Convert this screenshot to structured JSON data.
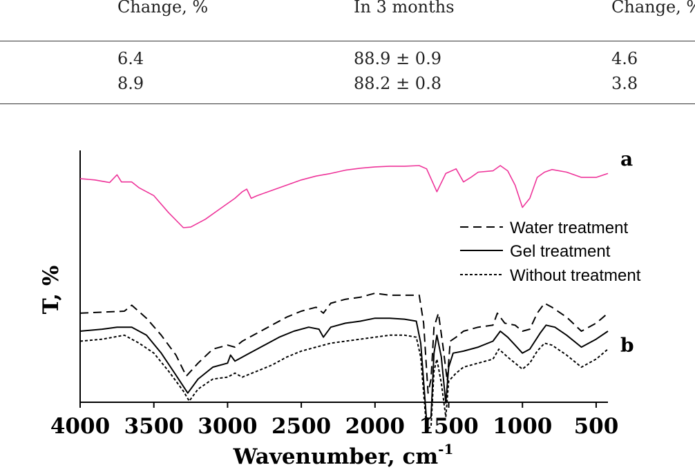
{
  "table": {
    "headers": [
      "Change, %",
      "In 3 months",
      "Change, %"
    ],
    "rows": [
      [
        "6.4",
        "88.9 ± 0.9",
        "4.6"
      ],
      [
        "8.9",
        "88.2 ± 0.8",
        "3.8"
      ]
    ]
  },
  "chart_data": {
    "type": "line",
    "title": "",
    "xlabel": "Wavenumber, cm",
    "xlabel_superscript": "-1",
    "ylabel": "T, %",
    "xlim": [
      4000,
      420
    ],
    "x_ticks": [
      4000,
      3500,
      3000,
      2500,
      2000,
      1500,
      1000,
      500
    ],
    "x_tick_labels": [
      "4000",
      "3500",
      "3000",
      "2500",
      "2000",
      "1500",
      "1000",
      "500"
    ],
    "grid": false,
    "legend_position": "right",
    "legend": [
      "Water treatment",
      "Gel treatment",
      "Without treatment"
    ],
    "panel_labels": [
      "a",
      "b"
    ],
    "series": [
      {
        "panel": "a",
        "color": "#ee3399",
        "style": "solid",
        "points": [
          [
            4000,
            0.2
          ],
          [
            3900,
            0.22
          ],
          [
            3800,
            0.26
          ],
          [
            3750,
            0.14
          ],
          [
            3720,
            0.25
          ],
          [
            3650,
            0.25
          ],
          [
            3600,
            0.34
          ],
          [
            3500,
            0.46
          ],
          [
            3400,
            0.72
          ],
          [
            3300,
            0.95
          ],
          [
            3250,
            0.94
          ],
          [
            3150,
            0.82
          ],
          [
            3050,
            0.66
          ],
          [
            2950,
            0.5
          ],
          [
            2900,
            0.4
          ],
          [
            2870,
            0.36
          ],
          [
            2840,
            0.5
          ],
          [
            2800,
            0.46
          ],
          [
            2700,
            0.38
          ],
          [
            2600,
            0.3
          ],
          [
            2500,
            0.22
          ],
          [
            2400,
            0.16
          ],
          [
            2300,
            0.12
          ],
          [
            2200,
            0.07
          ],
          [
            2100,
            0.04
          ],
          [
            2000,
            0.02
          ],
          [
            1900,
            0.01
          ],
          [
            1800,
            0.01
          ],
          [
            1700,
            0.0
          ],
          [
            1650,
            0.05
          ],
          [
            1580,
            0.4
          ],
          [
            1520,
            0.12
          ],
          [
            1450,
            0.05
          ],
          [
            1400,
            0.25
          ],
          [
            1350,
            0.18
          ],
          [
            1300,
            0.1
          ],
          [
            1200,
            0.08
          ],
          [
            1150,
            0.0
          ],
          [
            1100,
            0.08
          ],
          [
            1050,
            0.3
          ],
          [
            1000,
            0.64
          ],
          [
            950,
            0.5
          ],
          [
            900,
            0.18
          ],
          [
            850,
            0.1
          ],
          [
            800,
            0.06
          ],
          [
            700,
            0.1
          ],
          [
            600,
            0.18
          ],
          [
            500,
            0.18
          ],
          [
            420,
            0.12
          ]
        ]
      },
      {
        "panel": "b",
        "name": "Water treatment",
        "color": "#000000",
        "style": "dashed",
        "points": [
          [
            4000,
            0.2
          ],
          [
            3700,
            0.18
          ],
          [
            3650,
            0.12
          ],
          [
            3550,
            0.25
          ],
          [
            3450,
            0.42
          ],
          [
            3350,
            0.62
          ],
          [
            3280,
            0.83
          ],
          [
            3200,
            0.7
          ],
          [
            3100,
            0.56
          ],
          [
            3000,
            0.52
          ],
          [
            2950,
            0.54
          ],
          [
            2900,
            0.48
          ],
          [
            2800,
            0.4
          ],
          [
            2700,
            0.32
          ],
          [
            2600,
            0.24
          ],
          [
            2500,
            0.18
          ],
          [
            2400,
            0.14
          ],
          [
            2350,
            0.2
          ],
          [
            2300,
            0.1
          ],
          [
            2200,
            0.06
          ],
          [
            2100,
            0.04
          ],
          [
            2000,
            0.0
          ],
          [
            1900,
            0.02
          ],
          [
            1800,
            0.02
          ],
          [
            1700,
            0.02
          ],
          [
            1670,
            0.3
          ],
          [
            1640,
            1.0
          ],
          [
            1620,
            0.86
          ],
          [
            1600,
            0.34
          ],
          [
            1570,
            0.2
          ],
          [
            1540,
            0.52
          ],
          [
            1510,
            0.88
          ],
          [
            1490,
            0.48
          ],
          [
            1450,
            0.44
          ],
          [
            1400,
            0.38
          ],
          [
            1300,
            0.34
          ],
          [
            1200,
            0.32
          ],
          [
            1170,
            0.2
          ],
          [
            1120,
            0.3
          ],
          [
            1050,
            0.32
          ],
          [
            1000,
            0.38
          ],
          [
            950,
            0.36
          ],
          [
            900,
            0.2
          ],
          [
            850,
            0.1
          ],
          [
            800,
            0.14
          ],
          [
            700,
            0.24
          ],
          [
            600,
            0.38
          ],
          [
            500,
            0.3
          ],
          [
            420,
            0.2
          ]
        ]
      },
      {
        "panel": "b",
        "name": "Gel treatment",
        "color": "#000000",
        "style": "solid",
        "points": [
          [
            4000,
            0.38
          ],
          [
            3850,
            0.36
          ],
          [
            3750,
            0.34
          ],
          [
            3650,
            0.34
          ],
          [
            3550,
            0.42
          ],
          [
            3450,
            0.6
          ],
          [
            3350,
            0.82
          ],
          [
            3270,
            1.0
          ],
          [
            3200,
            0.86
          ],
          [
            3100,
            0.74
          ],
          [
            3000,
            0.7
          ],
          [
            2980,
            0.62
          ],
          [
            2950,
            0.68
          ],
          [
            2850,
            0.6
          ],
          [
            2750,
            0.52
          ],
          [
            2650,
            0.44
          ],
          [
            2550,
            0.38
          ],
          [
            2450,
            0.34
          ],
          [
            2380,
            0.36
          ],
          [
            2350,
            0.44
          ],
          [
            2300,
            0.34
          ],
          [
            2200,
            0.3
          ],
          [
            2100,
            0.28
          ],
          [
            2000,
            0.25
          ],
          [
            1900,
            0.25
          ],
          [
            1800,
            0.26
          ],
          [
            1720,
            0.28
          ],
          [
            1690,
            0.5
          ],
          [
            1650,
            1.28
          ],
          [
            1620,
            1.24
          ],
          [
            1600,
            0.6
          ],
          [
            1580,
            0.42
          ],
          [
            1550,
            0.64
          ],
          [
            1520,
            1.1
          ],
          [
            1500,
            0.74
          ],
          [
            1470,
            0.6
          ],
          [
            1400,
            0.58
          ],
          [
            1300,
            0.54
          ],
          [
            1200,
            0.48
          ],
          [
            1150,
            0.38
          ],
          [
            1100,
            0.44
          ],
          [
            1050,
            0.52
          ],
          [
            1000,
            0.6
          ],
          [
            950,
            0.56
          ],
          [
            880,
            0.4
          ],
          [
            840,
            0.32
          ],
          [
            780,
            0.34
          ],
          [
            700,
            0.42
          ],
          [
            600,
            0.54
          ],
          [
            500,
            0.46
          ],
          [
            420,
            0.38
          ]
        ]
      },
      {
        "panel": "b",
        "name": "Without treatment",
        "color": "#000000",
        "style": "dotted",
        "points": [
          [
            4000,
            0.48
          ],
          [
            3850,
            0.46
          ],
          [
            3700,
            0.42
          ],
          [
            3600,
            0.5
          ],
          [
            3500,
            0.6
          ],
          [
            3400,
            0.78
          ],
          [
            3300,
            0.98
          ],
          [
            3260,
            1.08
          ],
          [
            3200,
            0.96
          ],
          [
            3100,
            0.86
          ],
          [
            3000,
            0.84
          ],
          [
            2950,
            0.8
          ],
          [
            2900,
            0.84
          ],
          [
            2800,
            0.78
          ],
          [
            2700,
            0.72
          ],
          [
            2600,
            0.64
          ],
          [
            2500,
            0.58
          ],
          [
            2400,
            0.54
          ],
          [
            2300,
            0.5
          ],
          [
            2200,
            0.48
          ],
          [
            2100,
            0.46
          ],
          [
            2000,
            0.44
          ],
          [
            1900,
            0.42
          ],
          [
            1800,
            0.42
          ],
          [
            1720,
            0.44
          ],
          [
            1690,
            0.64
          ],
          [
            1650,
            1.36
          ],
          [
            1620,
            1.34
          ],
          [
            1600,
            0.78
          ],
          [
            1580,
            0.66
          ],
          [
            1550,
            0.9
          ],
          [
            1520,
            1.24
          ],
          [
            1500,
            0.88
          ],
          [
            1450,
            0.8
          ],
          [
            1400,
            0.74
          ],
          [
            1300,
            0.7
          ],
          [
            1200,
            0.66
          ],
          [
            1160,
            0.56
          ],
          [
            1100,
            0.64
          ],
          [
            1050,
            0.7
          ],
          [
            1000,
            0.76
          ],
          [
            950,
            0.7
          ],
          [
            900,
            0.58
          ],
          [
            850,
            0.5
          ],
          [
            800,
            0.52
          ],
          [
            700,
            0.62
          ],
          [
            600,
            0.74
          ],
          [
            500,
            0.66
          ],
          [
            420,
            0.56
          ]
        ]
      }
    ]
  }
}
